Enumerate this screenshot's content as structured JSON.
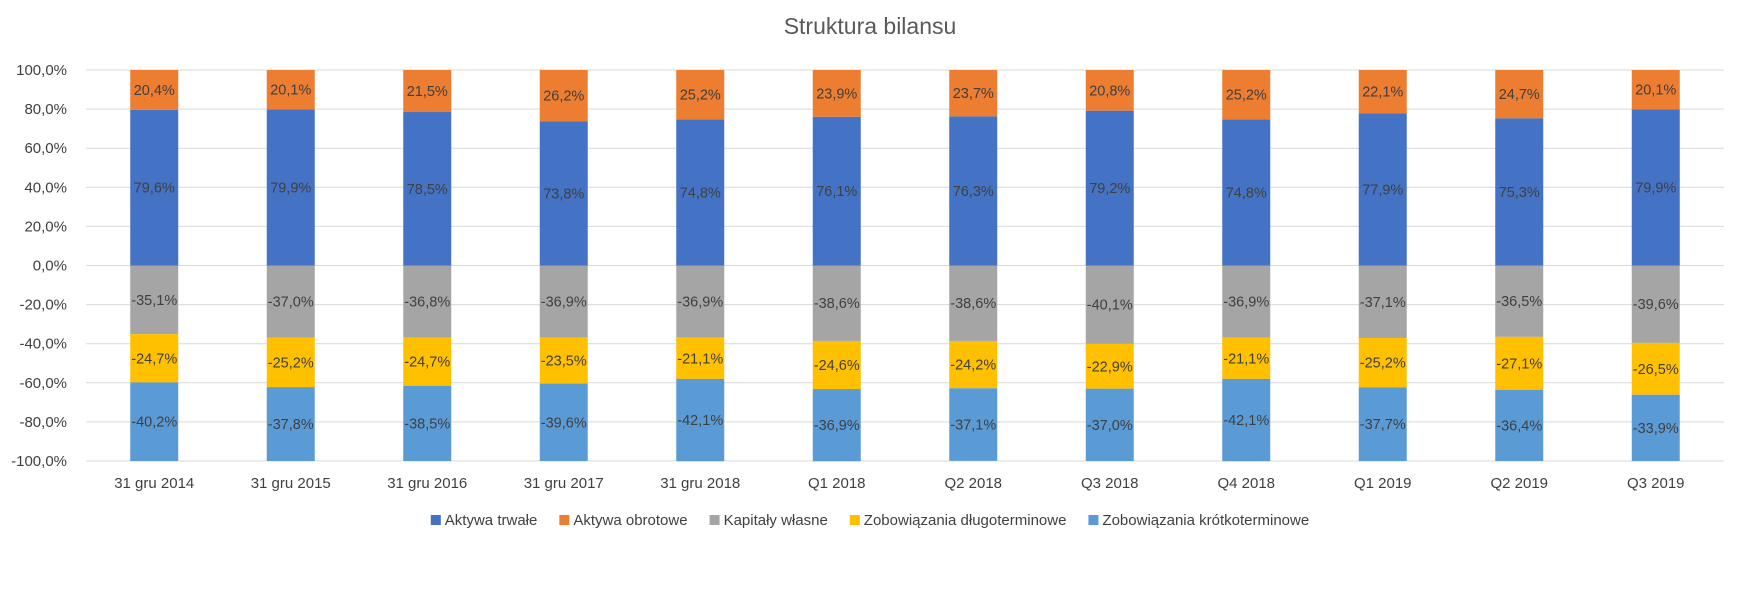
{
  "chart_data": {
    "type": "bar",
    "stacked": true,
    "title": "Struktura bilansu",
    "xlabel": "",
    "ylabel": "",
    "ylim": [
      -100,
      100
    ],
    "yticks": [
      100,
      80,
      60,
      40,
      20,
      0,
      -20,
      -40,
      -60,
      -80,
      -100
    ],
    "ytick_labels": [
      "100,0%",
      "80,0%",
      "60,0%",
      "40,0%",
      "20,0%",
      "0,0%",
      "-20,0%",
      "-40,0%",
      "-60,0%",
      "-80,0%",
      "-100,0%"
    ],
    "grid": true,
    "legend_position": "bottom",
    "categories": [
      "31 gru 2014",
      "31 gru 2015",
      "31 gru 2016",
      "31 gru 2017",
      "31 gru 2018",
      "Q1 2018",
      "Q2 2018",
      "Q3 2018",
      "Q4 2018",
      "Q1 2019",
      "Q2 2019",
      "Q3 2019"
    ],
    "series": [
      {
        "name": "Aktywa trwałe",
        "color": "#4472C4",
        "values": [
          79.6,
          79.9,
          78.5,
          73.8,
          74.8,
          76.1,
          76.3,
          79.2,
          74.8,
          77.9,
          75.3,
          79.9
        ],
        "labels": [
          "79,6%",
          "79,9%",
          "78,5%",
          "73,8%",
          "74,8%",
          "76,1%",
          "76,3%",
          "79,2%",
          "74,8%",
          "77,9%",
          "75,3%",
          "79,9%"
        ]
      },
      {
        "name": "Aktywa obrotowe",
        "color": "#ED7D31",
        "values": [
          20.4,
          20.1,
          21.5,
          26.2,
          25.2,
          23.9,
          23.7,
          20.8,
          25.2,
          22.1,
          24.7,
          20.1
        ],
        "labels": [
          "20,4%",
          "20,1%",
          "21,5%",
          "26,2%",
          "25,2%",
          "23,9%",
          "23,7%",
          "20,8%",
          "25,2%",
          "22,1%",
          "24,7%",
          "20,1%"
        ]
      },
      {
        "name": "Kapitały własne",
        "color": "#A5A5A5",
        "values": [
          -35.1,
          -37.0,
          -36.8,
          -36.9,
          -36.9,
          -38.6,
          -38.6,
          -40.1,
          -36.9,
          -37.1,
          -36.5,
          -39.6
        ],
        "labels": [
          "-35,1%",
          "-37,0%",
          "-36,8%",
          "-36,9%",
          "-36,9%",
          "-38,6%",
          "-38,6%",
          "-40,1%",
          "-36,9%",
          "-37,1%",
          "-36,5%",
          "-39,6%"
        ]
      },
      {
        "name": "Zobowiązania długoterminowe",
        "color": "#FFC000",
        "values": [
          -24.7,
          -25.2,
          -24.7,
          -23.5,
          -21.1,
          -24.6,
          -24.2,
          -22.9,
          -21.1,
          -25.2,
          -27.1,
          -26.5
        ],
        "labels": [
          "-24,7%",
          "-25,2%",
          "-24,7%",
          "-23,5%",
          "-21,1%",
          "-24,6%",
          "-24,2%",
          "-22,9%",
          "-21,1%",
          "-25,2%",
          "-27,1%",
          "-26,5%"
        ]
      },
      {
        "name": "Zobowiązania krótkoterminowe",
        "color": "#5B9BD5",
        "values": [
          -40.2,
          -37.8,
          -38.5,
          -39.6,
          -42.1,
          -36.9,
          -37.1,
          -37.0,
          -42.1,
          -37.7,
          -36.4,
          -33.9
        ],
        "labels": [
          "-40,2%",
          "-37,8%",
          "-38,5%",
          "-39,6%",
          "-42,1%",
          "-36,9%",
          "-37,1%",
          "-37,0%",
          "-42,1%",
          "-37,7%",
          "-36,4%",
          "-33,9%"
        ]
      }
    ]
  }
}
